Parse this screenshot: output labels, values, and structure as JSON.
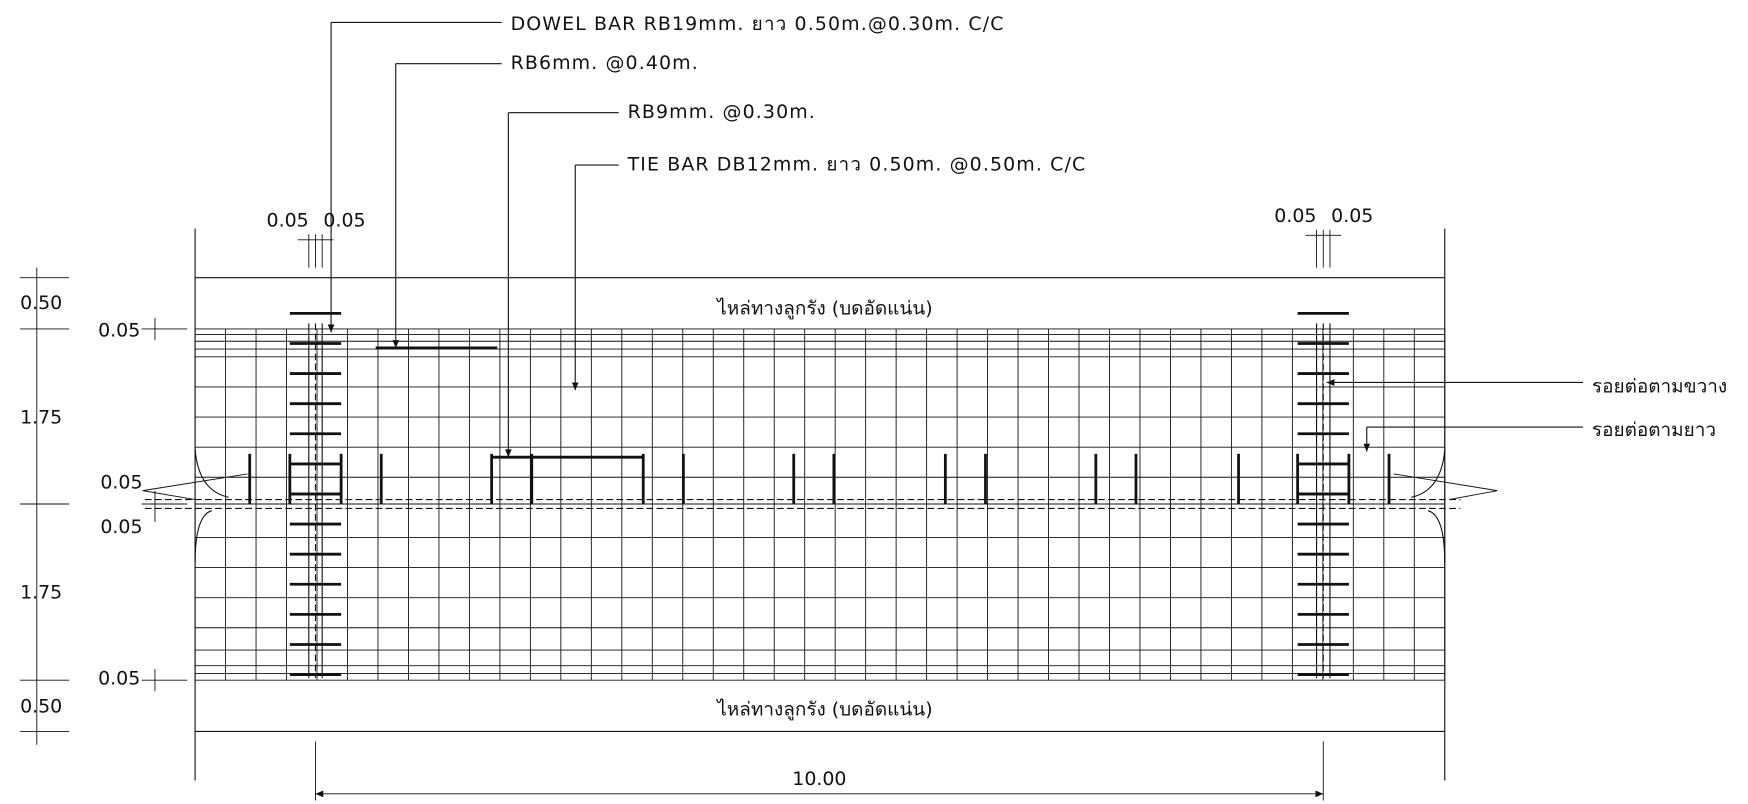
{
  "callouts": [
    "DOWEL BAR RB19mm. ยาว 0.50m.@0.30m. C/C",
    "RB6mm. @0.40m.",
    "RB9mm. @0.30m.",
    "TIE BAR DB12mm. ยาว 0.50m. @0.50m. C/C"
  ],
  "shoulder_labels": [
    "ไหล่ทางลูกรัง (บดอัดแน่น)",
    "ไหล่ทางลูกรัง (บดอัดแน่น)"
  ],
  "joint_labels": [
    "รอยต่อตามขวาง",
    "รอยต่อตามยาว"
  ],
  "dimensions": {
    "top_left": [
      "0.05",
      "0.05"
    ],
    "top_right": [
      "0.05",
      "0.05"
    ],
    "left": [
      "0.50",
      "0.05",
      "1.75",
      "0.05",
      "0.05",
      "1.75",
      "0.05",
      "0.50"
    ],
    "bottom": "10.00"
  }
}
